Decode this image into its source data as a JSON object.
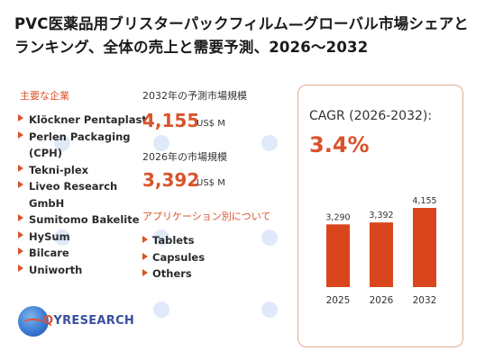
{
  "title": "PVC医薬品用ブリスターパックフィルム—グローバル市場シェアとランキング、全体の売上と需要予測、2026～2032",
  "players": {
    "label": "主要な企業",
    "items": [
      "Klöckner Pentaplast",
      "Perlen Packaging (CPH)",
      "Tekni-plex",
      "Liveo Research GmbH",
      "Sumitomo Bakelite",
      "HySum",
      "Bilcare",
      "Uniworth"
    ]
  },
  "forecast": {
    "label": "2032年の予測市場規模",
    "value": "4,155",
    "unit": "US$ M"
  },
  "current": {
    "label": "2026年の市場規模",
    "value": "3,392",
    "unit": "US$ M"
  },
  "applications": {
    "label": "アプリケーション別について",
    "items": [
      "Tablets",
      "Capsules",
      "Others"
    ]
  },
  "cagr": {
    "label": "CAGR (2026-2032):",
    "value": "3.4%"
  },
  "chart_data": {
    "type": "bar",
    "categories": [
      "2025",
      "2026",
      "2032"
    ],
    "values": [
      3290,
      3392,
      4155
    ],
    "data_labels": [
      "3,290",
      "3,392",
      "4,155"
    ],
    "title": "",
    "xlabel": "",
    "ylabel": "",
    "ylim": [
      0,
      4155
    ],
    "bar_color": "#d9461e",
    "grid": false,
    "legend": "none"
  },
  "logo": {
    "text_accent": "Q",
    "text_main": "YRESEARCH"
  },
  "colors": {
    "accent": "#d9532b",
    "brand_blue": "#3a4fa0"
  }
}
